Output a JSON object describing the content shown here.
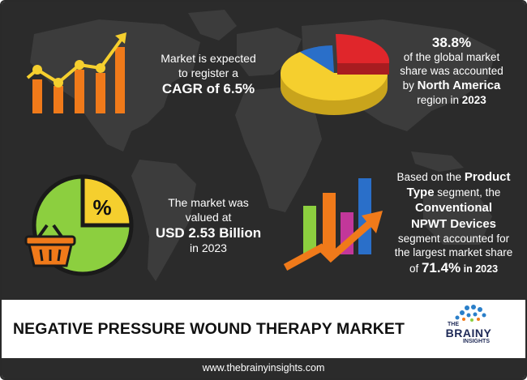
{
  "stat_cagr": {
    "line1": "Market is expected",
    "line2": "to register a",
    "highlight": "CAGR of 6.5%"
  },
  "stat_region": {
    "percent": "38.8%",
    "line1": "of the global market",
    "line2": "share was accounted",
    "line3_prefix": "by ",
    "region": "North America",
    "line4_prefix": "region in ",
    "year": "2023"
  },
  "stat_value": {
    "line1": "The market was",
    "line2": "valued at",
    "highlight": "USD 2.53 Billion",
    "line3": "in 2023"
  },
  "stat_segment": {
    "line1_prefix": "Based on the ",
    "line1_bold": "Product",
    "line2_bold": "Type",
    "line2_suffix": " segment, the",
    "line3_bold": "Conventional",
    "line4_bold": "NPWT Devices",
    "line5": "segment accounted for",
    "line6": "the largest market share",
    "line7_prefix": "of ",
    "percent": "71.4%",
    "line7_suffix": " in 2023"
  },
  "percent_badge": "%",
  "title": "NEGATIVE PRESSURE WOUND THERAPY MARKET",
  "logo": {
    "the": "THE",
    "brainy": "BRAINY",
    "insights": "INSIGHTS"
  },
  "footer_url": "www.thebrainyinsights.com",
  "colors": {
    "panel": "#2b2b2b",
    "map": "#3a3a3a",
    "orange": "#f07a1a",
    "yellow": "#f5cf2e",
    "green": "#8ccf3f",
    "red": "#e0262b",
    "blue": "#2a6fc9",
    "magenta": "#c2379a"
  },
  "icons": [
    "bar-growth-icon",
    "pie-3d-icon",
    "percent-pie-icon",
    "shopping-basket-icon",
    "growth-arrow-icon",
    "brainy-logo-icon"
  ]
}
